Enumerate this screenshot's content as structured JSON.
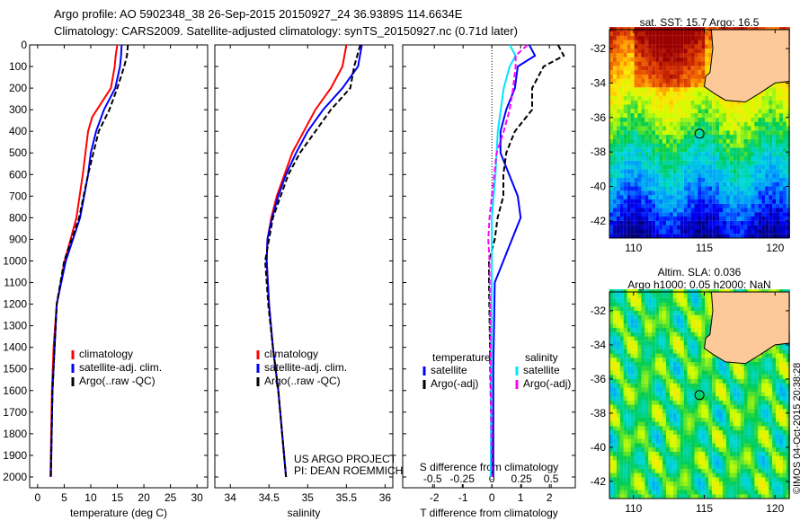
{
  "title_line1": "Argo profile: AO 5902348_38 26-Sep-2015 20150927_24 36.9389S 114.6634E",
  "title_line2": "Climatology: CARS2009. Satellite-adjusted climatology: synTS_20150927.nc (0.71d later)",
  "colors": {
    "climatology": "#ff0000",
    "satellite": "#0000ff",
    "argo": "#000000",
    "s_satellite": "#00e5ff",
    "s_argo": "#ff00ff"
  },
  "chart_data": [
    {
      "type": "line",
      "xlabel": "temperature (deg C)",
      "ylabel": "",
      "xlim": [
        -1.5,
        32
      ],
      "ylim": [
        2050,
        0
      ],
      "xticks": [
        0,
        5,
        10,
        15,
        20,
        25,
        30
      ],
      "yticks": [
        0,
        100,
        200,
        300,
        400,
        500,
        600,
        700,
        800,
        900,
        1000,
        1100,
        1200,
        1300,
        1400,
        1500,
        1600,
        1700,
        1800,
        1900,
        2000
      ],
      "legend_position": "bottom-center",
      "series": [
        {
          "name": "climatology",
          "color": "#ff0000",
          "depth": [
            0,
            50,
            100,
            200,
            333,
            400,
            600,
            800,
            1000,
            1200,
            1400,
            1600,
            2000
          ],
          "values": [
            15,
            14.7,
            14.5,
            13.8,
            10.3,
            9.5,
            8.5,
            7.3,
            5.1,
            3.6,
            3.0,
            2.7,
            2.4
          ]
        },
        {
          "name": "satellite-adj. clim.",
          "color": "#0000ff",
          "depth": [
            0,
            50,
            100,
            200,
            300,
            400,
            500,
            600,
            800,
            1000,
            1200,
            1600,
            2000
          ],
          "values": [
            15.8,
            15.7,
            15.5,
            14.6,
            12.5,
            11,
            10,
            9.5,
            8,
            5.3,
            3.6,
            2.8,
            2.5
          ]
        },
        {
          "name": "Argo(..raw -QC)",
          "color": "#000000",
          "dashed": true,
          "depth": [
            0,
            50,
            100,
            200,
            300,
            400,
            500,
            600,
            800,
            1000,
            1200,
            1600,
            2000
          ],
          "values": [
            17,
            16.8,
            16.3,
            15,
            13.5,
            11.5,
            10.5,
            9.5,
            7.8,
            5,
            3.6,
            2.8,
            2.5
          ]
        }
      ]
    },
    {
      "type": "line",
      "xlabel": "salinity",
      "xlim": [
        33.8,
        36.1
      ],
      "ylim": [
        2050,
        0
      ],
      "xticks": [
        34,
        34.5,
        35,
        35.5,
        36
      ],
      "legend_position": "bottom-center",
      "annotation": [
        "US ARGO PROJECT",
        "PI: DEAN ROEMMICH"
      ],
      "series": [
        {
          "name": "climatology",
          "color": "#ff0000",
          "depth": [
            0,
            100,
            200,
            300,
            400,
            500,
            600,
            700,
            800,
            900,
            1000,
            1200,
            1400,
            1600,
            1800,
            2000
          ],
          "values": [
            35.5,
            35.45,
            35.3,
            35.1,
            34.95,
            34.8,
            34.7,
            34.6,
            34.53,
            34.48,
            34.47,
            34.5,
            34.55,
            34.62,
            34.67,
            34.72
          ]
        },
        {
          "name": "satellite-adj. clim.",
          "color": "#0000ff",
          "depth": [
            0,
            100,
            200,
            300,
            400,
            500,
            600,
            700,
            800,
            900,
            1000,
            1200,
            1400,
            1600,
            1800,
            2000
          ],
          "values": [
            35.7,
            35.65,
            35.45,
            35.2,
            35.0,
            34.85,
            34.72,
            34.62,
            34.54,
            34.48,
            34.47,
            34.5,
            34.55,
            34.62,
            34.67,
            34.72
          ]
        },
        {
          "name": "Argo(..raw -QC)",
          "color": "#000000",
          "dashed": true,
          "depth": [
            0,
            100,
            200,
            300,
            400,
            500,
            600,
            800,
            1000,
            1200,
            1400,
            1600,
            1800,
            2000
          ],
          "values": [
            35.68,
            35.6,
            35.55,
            35.3,
            35.1,
            34.9,
            34.75,
            34.55,
            34.45,
            34.49,
            34.55,
            34.62,
            34.67,
            34.72
          ]
        }
      ]
    },
    {
      "type": "line",
      "xlabel": "T difference from climatology",
      "x2label": "S difference from climatology",
      "xlim": [
        -3.1,
        2.9
      ],
      "ylim": [
        2050,
        0
      ],
      "xticks": [
        -2,
        -1,
        0,
        1,
        2
      ],
      "x2ticks": [
        -0.5,
        -0.25,
        0,
        0.25,
        0.5
      ],
      "x2ticklabels": [
        "-0.5",
        "-0.25",
        "0",
        "0.25",
        "0.5"
      ],
      "legend_titles": [
        "temperature",
        "salinity"
      ],
      "series": [
        {
          "name": "satellite",
          "group": "temperature",
          "color": "#0000ff",
          "depth": [
            0,
            50,
            100,
            200,
            300,
            400,
            500,
            600,
            700,
            800,
            900,
            1000,
            1100,
            1500,
            2000
          ],
          "values": [
            1.3,
            1.5,
            0.9,
            0.8,
            0.5,
            0.3,
            0.3,
            0.6,
            0.9,
            1.0,
            0.7,
            0.4,
            0.1,
            0.05,
            0.05
          ]
        },
        {
          "name": "Argo(-adj)",
          "group": "temperature",
          "color": "#000000",
          "dashed": true,
          "depth": [
            0,
            50,
            100,
            200,
            300,
            400,
            500,
            600,
            700,
            800,
            900,
            1000,
            1100,
            2000
          ],
          "values": [
            2.3,
            2.5,
            1.8,
            1.4,
            1.4,
            0.8,
            0.5,
            0.4,
            0.4,
            0.2,
            0.1,
            -0.1,
            -0.1,
            0
          ]
        },
        {
          "name": "satellite",
          "group": "salinity",
          "scale": "S",
          "color": "#00e5ff",
          "depth": [
            0,
            50,
            100,
            200,
            400,
            600,
            800,
            1000,
            2000
          ],
          "values": [
            0.15,
            0.2,
            0.15,
            0.1,
            0.05,
            0.03,
            0.0,
            0.0,
            -0.01
          ]
        },
        {
          "name": "Argo(-adj)",
          "group": "salinity",
          "scale": "S",
          "color": "#ff00ff",
          "dashed": true,
          "depth": [
            0,
            50,
            100,
            200,
            300,
            400,
            500,
            700,
            800,
            900,
            1000,
            2000
          ],
          "values": [
            0.3,
            0.2,
            0.2,
            0.18,
            0.15,
            0.1,
            0.04,
            0.0,
            -0.02,
            -0.03,
            -0.02,
            0
          ]
        }
      ]
    },
    {
      "type": "heatmap",
      "title": "sat. SST: 15.7 Argo: 16.5",
      "xlim": [
        108.3,
        121
      ],
      "ylim": [
        -43,
        -30.9
      ],
      "xticks": [
        110,
        115,
        120
      ],
      "yticks": [
        -32,
        -34,
        -36,
        -38,
        -40,
        -42
      ],
      "marker": {
        "lon": 114.66,
        "lat": -36.94
      }
    },
    {
      "type": "heatmap",
      "title": [
        "Altim. SLA: 0.036",
        "Argo h1000: 0.05 h2000: NaN"
      ],
      "xlim": [
        108.3,
        121
      ],
      "ylim": [
        -43,
        -30.9
      ],
      "xticks": [
        110,
        115,
        120
      ],
      "yticks": [
        -32,
        -34,
        -36,
        -38,
        -40,
        -42
      ],
      "marker": {
        "lon": 114.66,
        "lat": -36.94
      }
    }
  ],
  "footer": "©IMOS 04-Oct-2015 20:38:28"
}
